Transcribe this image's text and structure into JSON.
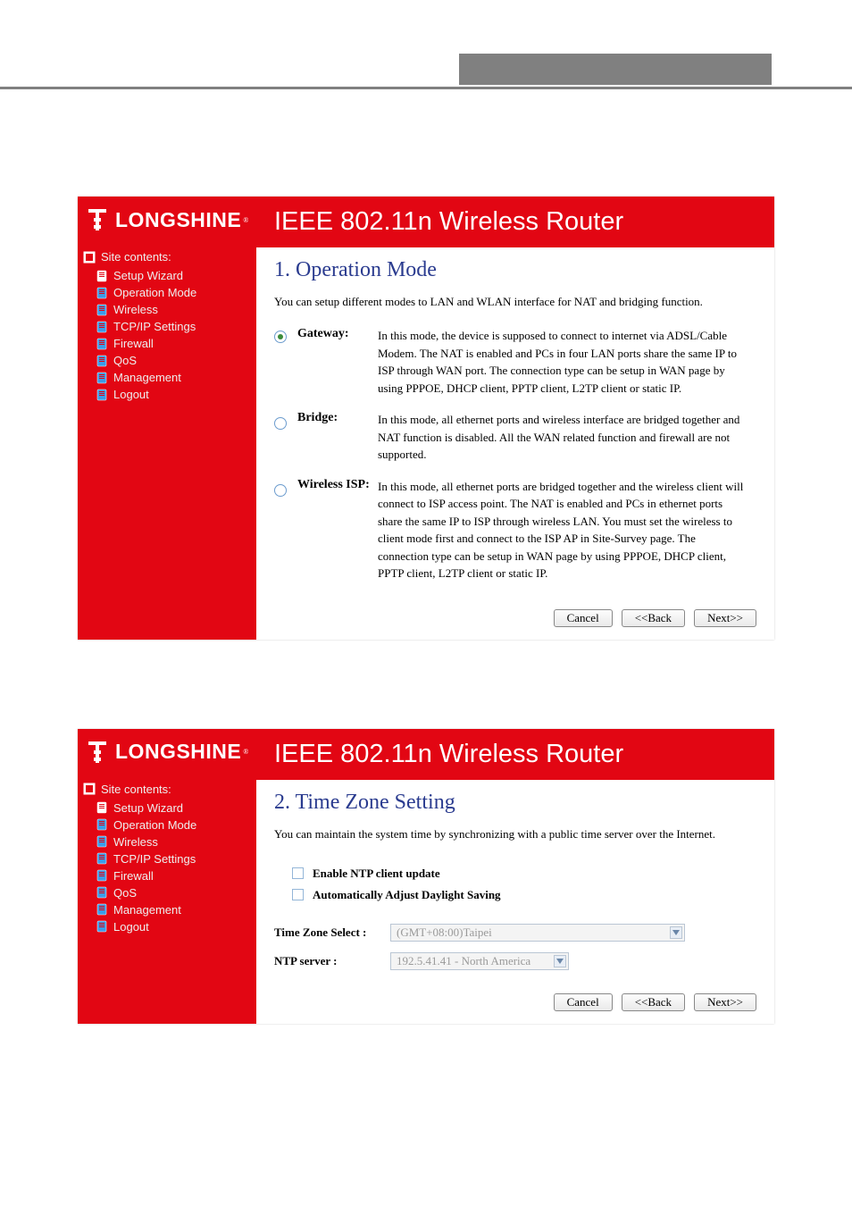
{
  "brand": "LONGSHINE",
  "page_title": "IEEE 802.11n Wireless Router",
  "sidebar": {
    "heading": "Site contents:",
    "items": [
      {
        "label": "Setup Wizard",
        "icon_color": "#ffffff"
      },
      {
        "label": "Operation Mode",
        "icon_color": "#3b9be8"
      },
      {
        "label": "Wireless",
        "icon_color": "#3b9be8"
      },
      {
        "label": "TCP/IP Settings",
        "icon_color": "#3b9be8"
      },
      {
        "label": "Firewall",
        "icon_color": "#3b9be8"
      },
      {
        "label": "QoS",
        "icon_color": "#3b9be8"
      },
      {
        "label": "Management",
        "icon_color": "#3b9be8"
      },
      {
        "label": "Logout",
        "icon_color": "#3b9be8"
      }
    ]
  },
  "panel1": {
    "heading": "1. Operation Mode",
    "desc": "You can setup different modes to LAN and WLAN interface for NAT and bridging function.",
    "modes": [
      {
        "name": "Gateway:",
        "selected": true,
        "desc": "In this mode, the device is supposed to connect to internet via ADSL/Cable Modem. The NAT is enabled and PCs in four LAN ports share the same IP to ISP through WAN port. The connection type can be setup in WAN page by using PPPOE, DHCP client, PPTP client, L2TP client or static IP."
      },
      {
        "name": "Bridge:",
        "selected": false,
        "desc": "In this mode, all ethernet ports and wireless interface are bridged together and NAT function is disabled. All the WAN related function and firewall are not supported."
      },
      {
        "name": "Wireless ISP:",
        "selected": false,
        "desc": "In this mode, all ethernet ports are bridged together and the wireless client will connect to ISP access point. The NAT is enabled and PCs in ethernet ports share the same IP to ISP through wireless LAN. You must set the wireless to client mode first and connect to the ISP AP in Site-Survey page. The connection type can be setup in WAN page by using PPPOE, DHCP client, PPTP client, L2TP client or static IP."
      }
    ]
  },
  "panel2": {
    "heading": "2. Time Zone Setting",
    "desc": "You can maintain the system time by synchronizing with a public time server over the Internet.",
    "opt1": "Enable NTP client update",
    "opt2": "Automatically Adjust Daylight Saving",
    "tz_label": "Time Zone Select :",
    "tz_value": "(GMT+08:00)Taipei",
    "ntp_label": "NTP server :",
    "ntp_value": "192.5.41.41 - North America"
  },
  "buttons": {
    "cancel": "Cancel",
    "back": "<<Back",
    "next": "Next>>"
  }
}
